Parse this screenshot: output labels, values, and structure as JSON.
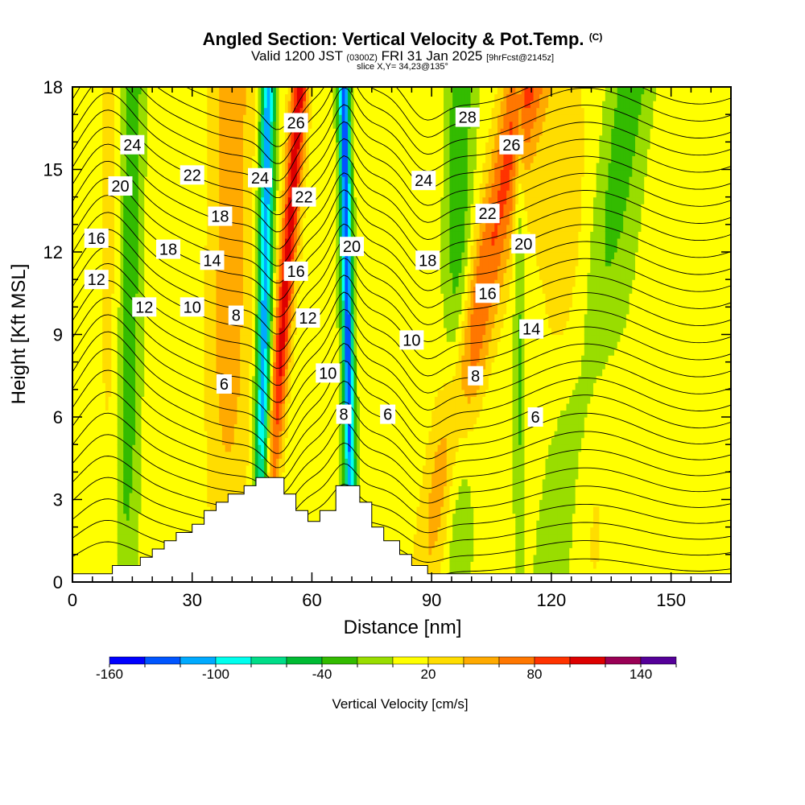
{
  "title": {
    "main": "Angled Section: Vertical Velocity & Pot.Temp.",
    "copyright": "(C)",
    "valid_prefix": "Valid 1200 JST",
    "utc_time": "(0300Z)",
    "valid_date": "FRI 31 Jan 2025",
    "forecast": "[9hrFcst@2145z]",
    "slice": "slice X,Y= 34,23@135°"
  },
  "chart_data": {
    "type": "heatmap",
    "xlabel": "Distance [nm]",
    "ylabel": "Height [Kft MSL]",
    "xlim": [
      0,
      165
    ],
    "ylim": [
      0,
      18
    ],
    "xticks": [
      0,
      30,
      60,
      90,
      120,
      150
    ],
    "yticks": [
      0,
      3,
      6,
      9,
      12,
      15,
      18
    ],
    "grid": false,
    "colorbar": {
      "label": "Vertical Velocity [cm/s]",
      "tick_labels": [
        "-160",
        "-100",
        "-40",
        "20",
        "80",
        "140"
      ],
      "tick_values": [
        -160,
        -100,
        -40,
        20,
        80,
        140
      ],
      "bounds": [
        -160,
        170
      ],
      "step": 20,
      "colors": [
        "#0000ff",
        "#0055ff",
        "#00aaff",
        "#00ffee",
        "#00dd88",
        "#00bb33",
        "#33bb00",
        "#99dd00",
        "#ffff00",
        "#ffdd00",
        "#ffaa00",
        "#ff7700",
        "#ff3300",
        "#dd0000",
        "#990055",
        "#550099"
      ]
    },
    "terrain": [
      [
        0,
        0.3
      ],
      [
        10,
        0.3
      ],
      [
        10,
        0.6
      ],
      [
        17,
        0.6
      ],
      [
        17,
        0.9
      ],
      [
        20,
        0.9
      ],
      [
        20,
        1.2
      ],
      [
        23,
        1.2
      ],
      [
        23,
        1.5
      ],
      [
        26,
        1.5
      ],
      [
        26,
        1.8
      ],
      [
        30,
        1.8
      ],
      [
        30,
        2.1
      ],
      [
        33,
        2.1
      ],
      [
        33,
        2.6
      ],
      [
        36,
        2.6
      ],
      [
        36,
        2.9
      ],
      [
        39,
        2.9
      ],
      [
        39,
        3.2
      ],
      [
        43,
        3.2
      ],
      [
        43,
        3.5
      ],
      [
        46,
        3.5
      ],
      [
        46,
        3.8
      ],
      [
        53,
        3.8
      ],
      [
        53,
        3.2
      ],
      [
        56,
        3.2
      ],
      [
        56,
        2.6
      ],
      [
        59,
        2.6
      ],
      [
        59,
        2.2
      ],
      [
        62,
        2.2
      ],
      [
        62,
        2.6
      ],
      [
        66,
        2.6
      ],
      [
        66,
        3.5
      ],
      [
        72,
        3.5
      ],
      [
        72,
        2.9
      ],
      [
        75,
        2.9
      ],
      [
        75,
        2.0
      ],
      [
        78,
        2.0
      ],
      [
        78,
        1.5
      ],
      [
        82,
        1.5
      ],
      [
        82,
        1.0
      ],
      [
        85,
        1.0
      ],
      [
        85,
        0.6
      ],
      [
        89,
        0.6
      ],
      [
        89,
        0.3
      ],
      [
        165,
        0.3
      ]
    ],
    "updraft_bands": [
      {
        "x_top": 57,
        "x_bottom": 48,
        "w": 2.2,
        "peak": 100
      },
      {
        "x_top": 113,
        "x_bottom": 88,
        "w": 5.0,
        "peak": 75
      },
      {
        "x_top": 40,
        "x_bottom": 38,
        "w": 6.0,
        "peak": 40
      },
      {
        "x_top": 120,
        "x_bottom": 130,
        "w": 8.0,
        "peak": 25
      },
      {
        "x_top": 10,
        "x_bottom": 10,
        "w": 3.0,
        "peak": 20
      }
    ],
    "downdraft_bands": [
      {
        "x_top": 68,
        "x_bottom": 70,
        "w": 1.4,
        "peak": -140
      },
      {
        "x_top": 49,
        "x_bottom": 47,
        "w": 1.8,
        "peak": -120
      },
      {
        "x_top": 97,
        "x_bottom": 96,
        "w": 3.5,
        "peak": -45
      },
      {
        "x_top": 15,
        "x_bottom": 13,
        "w": 3.0,
        "peak": -40
      },
      {
        "x_top": 140,
        "x_bottom": 120,
        "w": 6.0,
        "peak": -35
      },
      {
        "x_top": 112,
        "x_bottom": 112,
        "w": 1.5,
        "peak": -35
      }
    ],
    "theta_contours": {
      "units": "°C",
      "interval": 1,
      "range": [
        1,
        29
      ],
      "labels": [
        {
          "text": "24",
          "x": 15,
          "y": 15.9
        },
        {
          "text": "20",
          "x": 12,
          "y": 14.4
        },
        {
          "text": "16",
          "x": 6,
          "y": 12.5
        },
        {
          "text": "12",
          "x": 6,
          "y": 11.0
        },
        {
          "text": "12",
          "x": 18,
          "y": 10.0
        },
        {
          "text": "22",
          "x": 30,
          "y": 14.8
        },
        {
          "text": "18",
          "x": 24,
          "y": 12.1
        },
        {
          "text": "18",
          "x": 37,
          "y": 13.3
        },
        {
          "text": "14",
          "x": 35,
          "y": 11.7
        },
        {
          "text": "10",
          "x": 30,
          "y": 10.0
        },
        {
          "text": "8",
          "x": 41,
          "y": 9.7
        },
        {
          "text": "6",
          "x": 38,
          "y": 7.2
        },
        {
          "text": "24",
          "x": 47,
          "y": 14.7
        },
        {
          "text": "26",
          "x": 56,
          "y": 16.7
        },
        {
          "text": "22",
          "x": 58,
          "y": 14.0
        },
        {
          "text": "16",
          "x": 56,
          "y": 11.3
        },
        {
          "text": "12",
          "x": 59,
          "y": 9.6
        },
        {
          "text": "10",
          "x": 64,
          "y": 7.6
        },
        {
          "text": "8",
          "x": 68,
          "y": 6.1
        },
        {
          "text": "6",
          "x": 79,
          "y": 6.1
        },
        {
          "text": "20",
          "x": 70,
          "y": 12.2
        },
        {
          "text": "10",
          "x": 85,
          "y": 8.8
        },
        {
          "text": "18",
          "x": 89,
          "y": 11.7
        },
        {
          "text": "24",
          "x": 88,
          "y": 14.6
        },
        {
          "text": "28",
          "x": 99,
          "y": 16.9
        },
        {
          "text": "26",
          "x": 110,
          "y": 15.9
        },
        {
          "text": "22",
          "x": 104,
          "y": 13.4
        },
        {
          "text": "20",
          "x": 113,
          "y": 12.3
        },
        {
          "text": "16",
          "x": 104,
          "y": 10.5
        },
        {
          "text": "14",
          "x": 115,
          "y": 9.2
        },
        {
          "text": "8",
          "x": 101,
          "y": 7.5
        },
        {
          "text": "6",
          "x": 116,
          "y": 6.0
        }
      ]
    }
  }
}
